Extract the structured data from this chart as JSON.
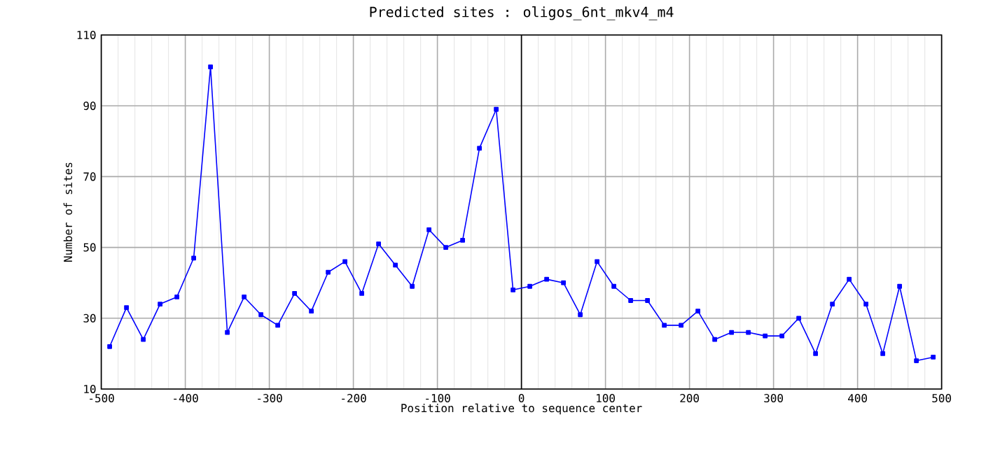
{
  "chart_data": {
    "type": "line",
    "title": "Predicted sites : oligos_6nt_mkv4_m4",
    "xlabel": "Position relative to sequence center",
    "ylabel": "Number of sites",
    "x": [
      -490,
      -470,
      -450,
      -430,
      -410,
      -390,
      -370,
      -350,
      -330,
      -310,
      -290,
      -270,
      -250,
      -230,
      -210,
      -190,
      -170,
      -150,
      -130,
      -110,
      -90,
      -70,
      -50,
      -30,
      -10,
      10,
      30,
      50,
      70,
      90,
      110,
      130,
      150,
      170,
      190,
      210,
      230,
      250,
      270,
      290,
      310,
      330,
      350,
      370,
      390,
      410,
      430,
      450,
      470,
      490
    ],
    "series": [
      {
        "color": "#0000ff",
        "values": [
          22,
          33,
          24,
          34,
          36,
          47,
          101,
          26,
          36,
          31,
          28,
          37,
          32,
          43,
          46,
          37,
          51,
          45,
          39,
          55,
          50,
          52,
          78,
          89,
          38,
          39,
          41,
          40,
          31,
          46,
          39,
          35,
          35,
          28,
          28,
          32,
          24,
          26,
          26,
          25,
          25,
          30,
          20,
          34,
          41,
          34,
          20,
          39,
          18,
          19
        ]
      }
    ],
    "xlim": [
      -500,
      500
    ],
    "xticks": [
      -500,
      -400,
      -300,
      -200,
      -100,
      0,
      100,
      200,
      300,
      400,
      500
    ],
    "ylim": [
      10,
      110
    ],
    "yticks": [
      10,
      30,
      50,
      70,
      90,
      110
    ],
    "ref_lines": [
      {
        "axis": "x",
        "value": 0,
        "color": "#000000"
      }
    ],
    "grid": true,
    "marker": "square",
    "line_style": "solid"
  }
}
